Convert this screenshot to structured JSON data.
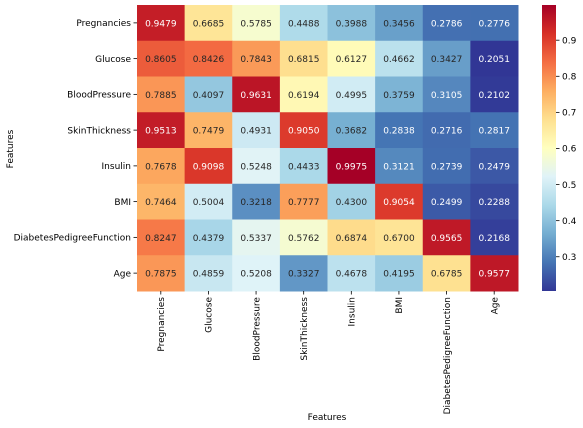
{
  "chart_data": {
    "type": "heatmap",
    "xlabel": "Features",
    "ylabel": "Features",
    "rows": [
      "Pregnancies",
      "Glucose",
      "BloodPressure",
      "SkinThickness",
      "Insulin",
      "BMI",
      "DiabetesPedigreeFunction",
      "Age"
    ],
    "columns": [
      "Pregnancies",
      "Glucose",
      "BloodPressure",
      "SkinThickness",
      "Insulin",
      "BMI",
      "DiabetesPedigreeFunction",
      "Age"
    ],
    "values": [
      [
        "0.9479",
        "0.6685",
        "0.5785",
        "0.4488",
        "0.3988",
        "0.3456",
        "0.2786",
        "0.2776"
      ],
      [
        "0.8605",
        "0.8426",
        "0.7843",
        "0.6815",
        "0.6127",
        "0.4662",
        "0.3427",
        "0.2051"
      ],
      [
        "0.7885",
        "0.4097",
        "0.9631",
        "0.6194",
        "0.4995",
        "0.3759",
        "0.3105",
        "0.2102"
      ],
      [
        "0.9513",
        "0.7479",
        "0.4931",
        "0.9050",
        "0.3682",
        "0.2838",
        "0.2716",
        "0.2817"
      ],
      [
        "0.7678",
        "0.9098",
        "0.5248",
        "0.4433",
        "0.9975",
        "0.3121",
        "0.2739",
        "0.2479"
      ],
      [
        "0.7464",
        "0.5004",
        "0.3218",
        "0.7777",
        "0.4300",
        "0.9054",
        "0.2499",
        "0.2288"
      ],
      [
        "0.8247",
        "0.4379",
        "0.5337",
        "0.5762",
        "0.6874",
        "0.6700",
        "0.9565",
        "0.2168"
      ],
      [
        "0.7875",
        "0.4859",
        "0.5208",
        "0.3327",
        "0.4678",
        "0.4195",
        "0.6785",
        "0.9577"
      ]
    ],
    "colormap": "RdYlBu_r",
    "vmin": 0.2051,
    "vmax": 0.9975,
    "colorbar_ticks": [
      "0.3",
      "0.4",
      "0.5",
      "0.6",
      "0.7",
      "0.8",
      "0.9"
    ],
    "annotations_shown": true
  }
}
